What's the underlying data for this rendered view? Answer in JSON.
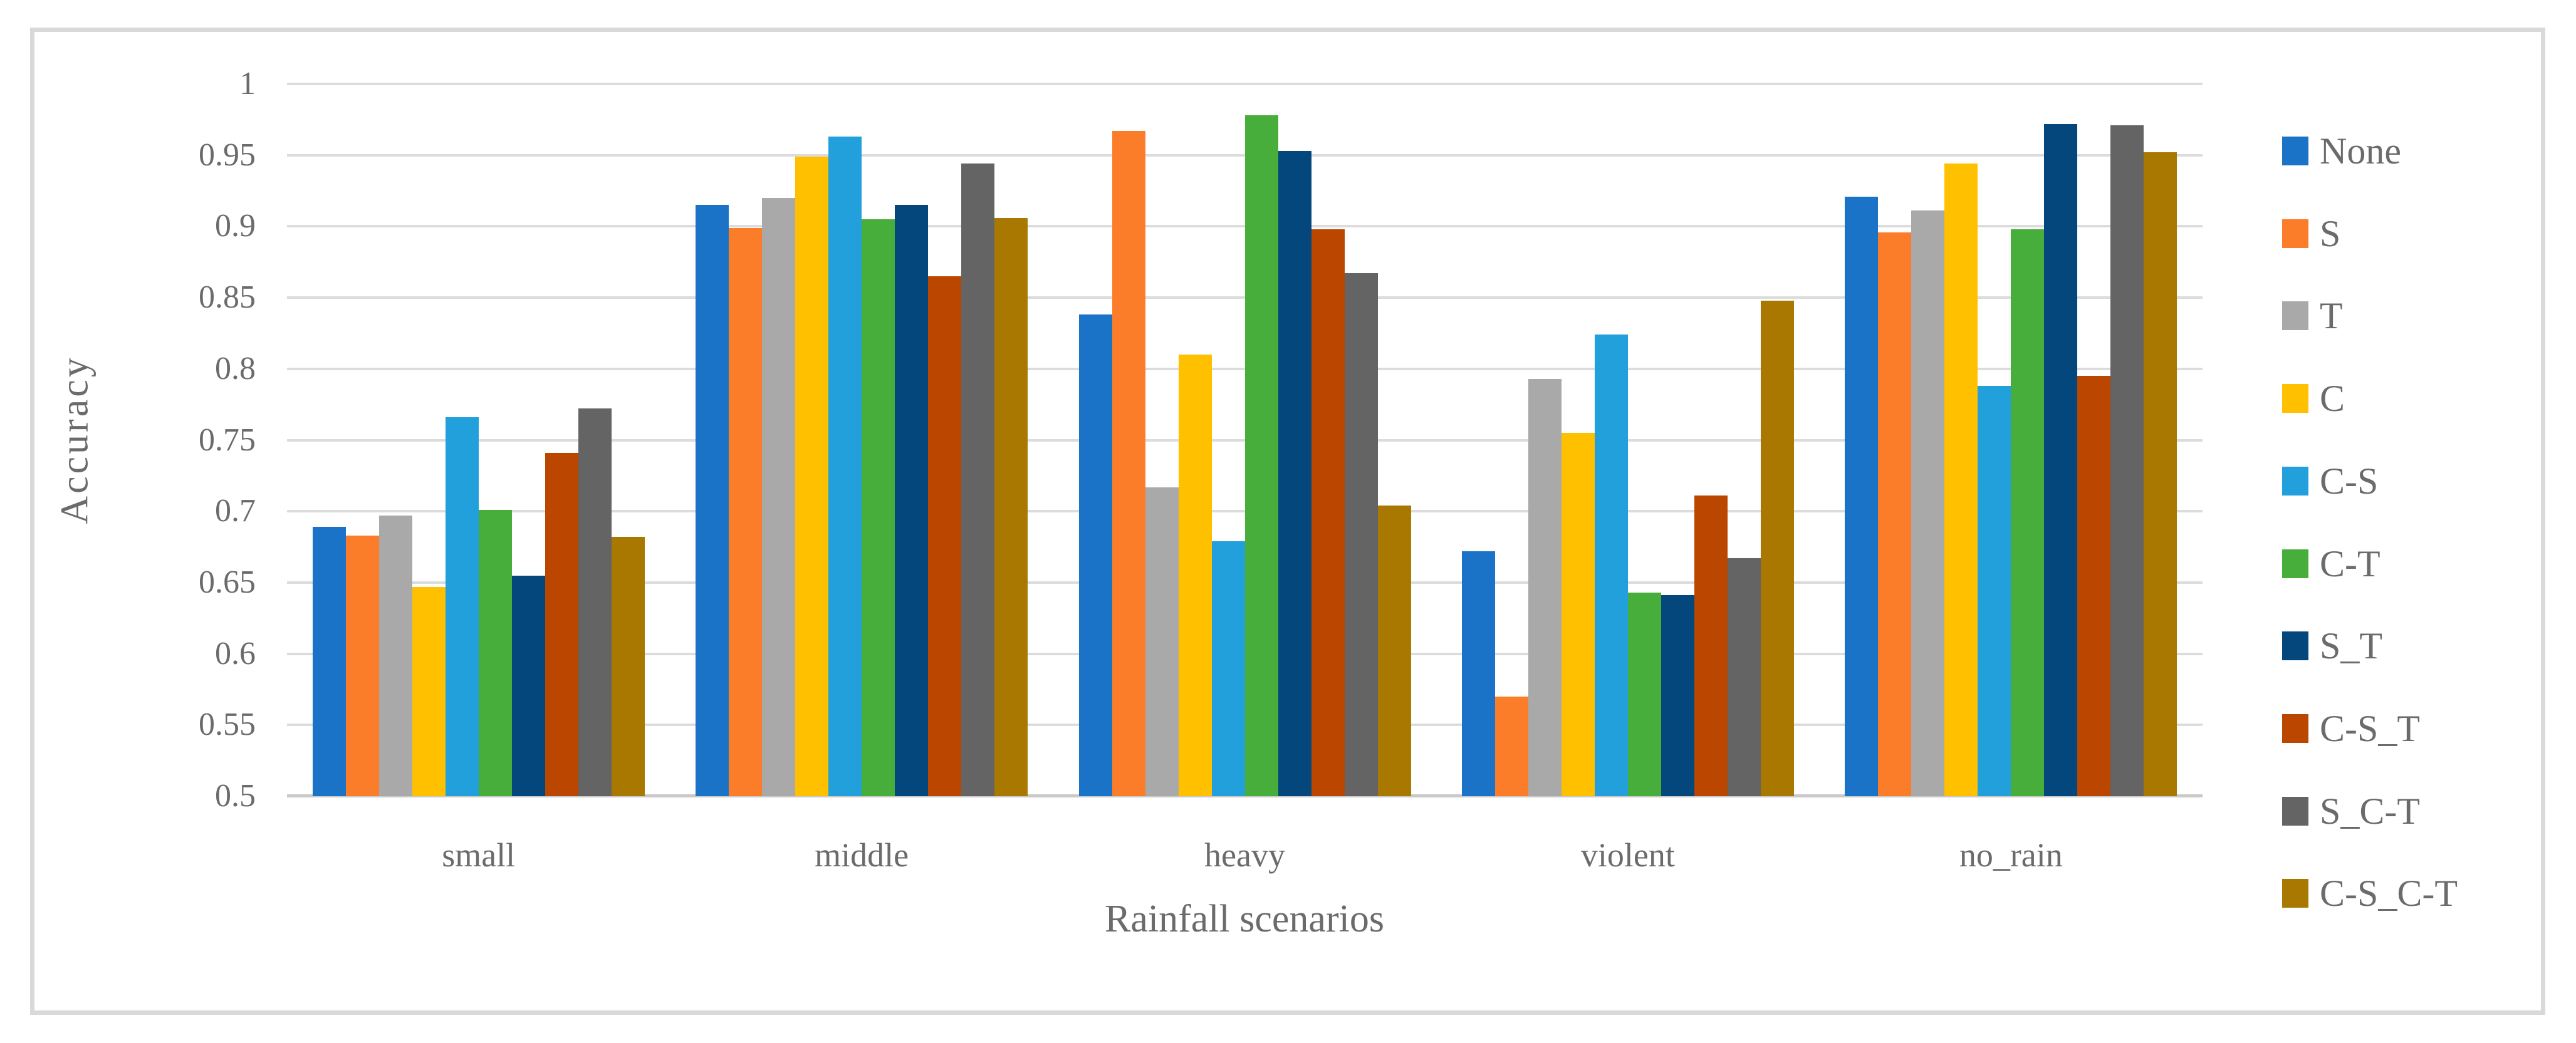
{
  "figure": {
    "background": "#FFFFFF",
    "border_color": "#D9D9D9"
  },
  "chart_data": {
    "type": "bar",
    "title": "",
    "xlabel": "Rainfall scenarios",
    "ylabel": "Accuracy",
    "categories": [
      "small",
      "middle",
      "heavy",
      "violent",
      "no_rain"
    ],
    "series": [
      {
        "name": "None",
        "color": "#1B73C8",
        "values": [
          0.689,
          0.915,
          0.838,
          0.672,
          0.921
        ]
      },
      {
        "name": "S",
        "color": "#FB7D29",
        "values": [
          0.683,
          0.899,
          0.967,
          0.57,
          0.896
        ]
      },
      {
        "name": "T",
        "color": "#A9A9A9",
        "values": [
          0.697,
          0.92,
          0.717,
          0.793,
          0.911
        ]
      },
      {
        "name": "C",
        "color": "#FFC000",
        "values": [
          0.647,
          0.949,
          0.81,
          0.755,
          0.944
        ]
      },
      {
        "name": "C-S",
        "color": "#22A0DB",
        "values": [
          0.766,
          0.963,
          0.679,
          0.824,
          0.788
        ]
      },
      {
        "name": "C-T",
        "color": "#47AE3B",
        "values": [
          0.701,
          0.905,
          0.978,
          0.643,
          0.898
        ]
      },
      {
        "name": "S_T",
        "color": "#03477D",
        "values": [
          0.655,
          0.915,
          0.953,
          0.641,
          0.972
        ]
      },
      {
        "name": "C-S_T",
        "color": "#BA4600",
        "values": [
          0.741,
          0.865,
          0.898,
          0.711,
          0.795
        ]
      },
      {
        "name": "S_C-T",
        "color": "#646464",
        "values": [
          0.772,
          0.944,
          0.867,
          0.667,
          0.971
        ]
      },
      {
        "name": "C-S_C-T",
        "color": "#A87800",
        "values": [
          0.682,
          0.906,
          0.704,
          0.848,
          0.952
        ]
      }
    ],
    "ylim": [
      0.5,
      1.0
    ],
    "ytick_labels": [
      "1",
      "0.95",
      "0.9",
      "0.85",
      "0.8",
      "0.75",
      "0.7",
      "0.65",
      "0.6",
      "0.55",
      "0.5"
    ],
    "grid": true,
    "grid_color": "#DCDCDC",
    "axis_line_color": "#C9C9C9",
    "text_color": "#6B6B6B",
    "legend_position": "right"
  }
}
